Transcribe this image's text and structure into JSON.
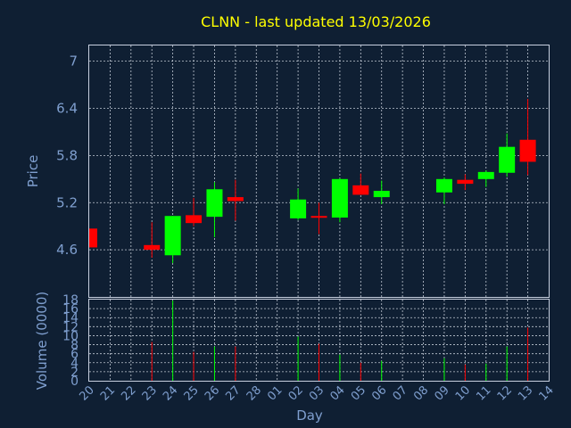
{
  "chart_data": {
    "type": "candlestick",
    "title": "CLNN - last updated 13/03/2026",
    "price_axis": {
      "label": "Price",
      "ticks": [
        4.6,
        5.2,
        5.8,
        6.4,
        7
      ],
      "range": [
        4.0,
        7.2
      ]
    },
    "volume_axis": {
      "label": "Volume (0000)",
      "ticks": [
        0,
        2,
        4,
        6,
        8,
        10,
        12,
        14,
        16,
        18
      ],
      "range": [
        0,
        18
      ]
    },
    "x_axis": {
      "label": "Day",
      "categories": [
        "20",
        "21",
        "22",
        "23",
        "24",
        "25",
        "26",
        "27",
        "28",
        "01",
        "02",
        "03",
        "04",
        "05",
        "06",
        "07",
        "08",
        "09",
        "10",
        "11",
        "12",
        "13",
        "14"
      ]
    },
    "grid": true,
    "colors": {
      "up": "#00ff00",
      "down": "#ff0000",
      "background": "#0f1f33",
      "grid": "#dfe6f0",
      "title": "#ffff00",
      "axis_text": "#7f9fcf"
    },
    "candles": [
      {
        "day": "20",
        "open": 4.87,
        "high": 4.87,
        "low": 4.63,
        "close": 4.63
      },
      {
        "day": "23",
        "open": 4.66,
        "high": 4.95,
        "low": 4.5,
        "close": 4.6
      },
      {
        "day": "24",
        "open": 4.53,
        "high": 5.03,
        "low": 4.43,
        "close": 5.03
      },
      {
        "day": "25",
        "open": 5.04,
        "high": 5.26,
        "low": 4.9,
        "close": 4.94
      },
      {
        "day": "26",
        "open": 5.02,
        "high": 5.46,
        "low": 4.76,
        "close": 5.37
      },
      {
        "day": "27",
        "open": 5.27,
        "high": 5.49,
        "low": 4.97,
        "close": 5.22
      },
      {
        "day": "02",
        "open": 5.0,
        "high": 5.38,
        "low": 4.98,
        "close": 5.24
      },
      {
        "day": "03",
        "open": 5.03,
        "high": 5.2,
        "low": 4.8,
        "close": 5.02
      },
      {
        "day": "04",
        "open": 5.01,
        "high": 5.51,
        "low": 4.95,
        "close": 5.5
      },
      {
        "day": "05",
        "open": 5.42,
        "high": 5.57,
        "low": 5.3,
        "close": 5.3
      },
      {
        "day": "06",
        "open": 5.27,
        "high": 5.48,
        "low": 5.18,
        "close": 5.35
      },
      {
        "day": "09",
        "open": 5.33,
        "high": 5.52,
        "low": 5.18,
        "close": 5.5
      },
      {
        "day": "10",
        "open": 5.49,
        "high": 5.56,
        "low": 5.36,
        "close": 5.44
      },
      {
        "day": "11",
        "open": 5.5,
        "high": 5.61,
        "low": 5.4,
        "close": 5.59
      },
      {
        "day": "12",
        "open": 5.58,
        "high": 6.08,
        "low": 5.53,
        "close": 5.91
      },
      {
        "day": "13",
        "open": 6.0,
        "high": 6.52,
        "low": 5.55,
        "close": 5.72
      }
    ],
    "volume": [
      {
        "day": "23",
        "value": 8.6
      },
      {
        "day": "24",
        "value": 17.8
      },
      {
        "day": "25",
        "value": 6.4
      },
      {
        "day": "26",
        "value": 7.6
      },
      {
        "day": "27",
        "value": 7.6
      },
      {
        "day": "02",
        "value": 9.8
      },
      {
        "day": "03",
        "value": 8.2
      },
      {
        "day": "04",
        "value": 5.8
      },
      {
        "day": "05",
        "value": 4.0
      },
      {
        "day": "06",
        "value": 4.4
      },
      {
        "day": "09",
        "value": 5.0
      },
      {
        "day": "10",
        "value": 3.6
      },
      {
        "day": "11",
        "value": 3.8
      },
      {
        "day": "12",
        "value": 7.6
      },
      {
        "day": "13",
        "value": 11.8
      }
    ]
  }
}
